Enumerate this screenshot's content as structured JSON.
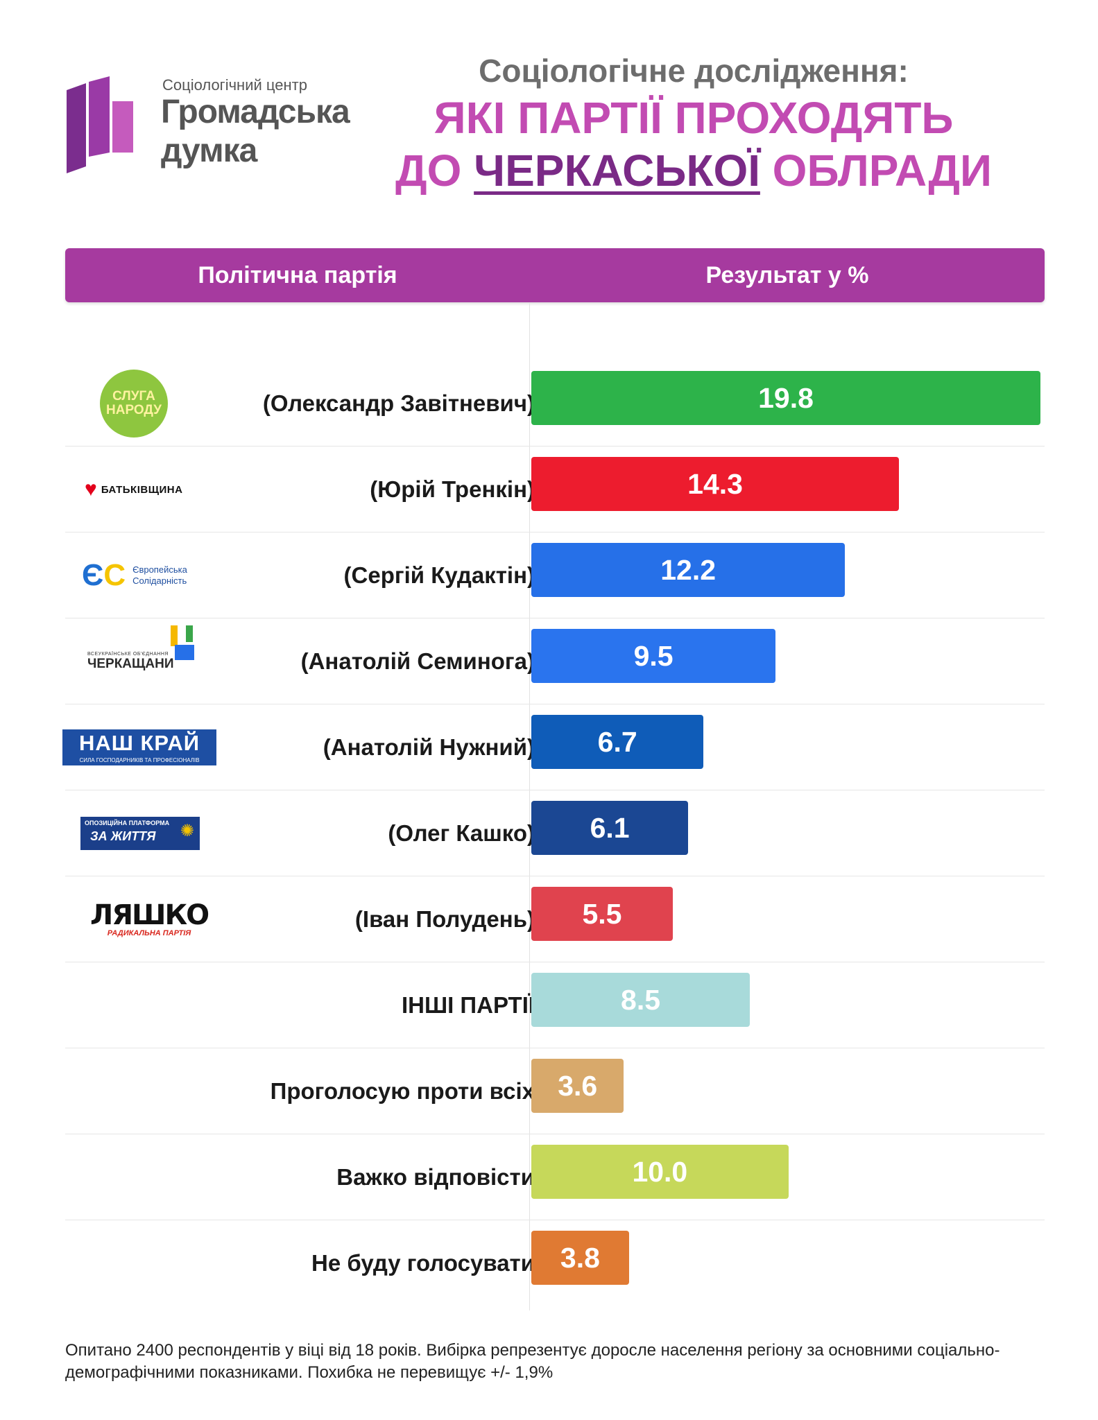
{
  "logo": {
    "subtitle": "Соціологічний центр",
    "name_line1": "Громадська",
    "name_line2": "думка"
  },
  "title": {
    "pre": "Соціологічне дослідження:",
    "line1": "ЯКІ ПАРТІЇ ПРОХОДЯТЬ",
    "line2_prefix": "ДО ",
    "line2_highlight": "ЧЕРКАСЬКОЇ",
    "line2_suffix": " ОБЛРАДИ"
  },
  "table_header": {
    "party": "Політична партія",
    "result": "Результат у %"
  },
  "party_logos": {
    "sluha": [
      "СЛУГА",
      "НАРОДУ"
    ],
    "batkivshchyna": "БАТЬКІВЩИНА",
    "es": [
      "Європейська",
      "Солідарність"
    ],
    "cherkashchany": [
      "ВСЕУКРАЇНСЬКЕ ОБ'ЄДНАННЯ",
      "ЧЕРКАЩАНИ"
    ],
    "nash_krai": [
      "НАШ КРАЙ",
      "СИЛА ГОСПОДАРНИКІВ ТА ПРОФЕСІОНАЛІВ"
    ],
    "opzzh": [
      "ОПОЗИЦІЙНА ПЛАТФОРМА",
      "ЗА ЖИТТЯ"
    ],
    "lyashko": [
      "ЛЯШКО",
      "РАДИКАЛЬНА ПАРТІЯ"
    ]
  },
  "chart_data": {
    "type": "bar",
    "orientation": "horizontal",
    "title": "ЯКІ ПАРТІЇ ПРОХОДЯТЬ ДО ЧЕРКАСЬКОЇ ОБЛРАДИ",
    "xlabel": "Результат у %",
    "ylabel": "Політична партія",
    "xlim": [
      0,
      19.8
    ],
    "categories": [
      "(Олександр Завітневич)",
      "(Юрій Тренкін)",
      "(Сергій Кудактін)",
      "(Анатолій Семинога)",
      "(Анатолій Нужний)",
      "(Олег Кашко)",
      "(Іван Полудень)",
      "ІНШІ ПАРТІЇ",
      "Проголосую проти всіх",
      "Важко відповісти",
      "Не буду голосувати"
    ],
    "values": [
      19.8,
      14.3,
      12.2,
      9.5,
      6.7,
      6.1,
      5.5,
      8.5,
      3.6,
      10.0,
      3.8
    ],
    "value_labels": [
      "19.8",
      "14.3",
      "12.2",
      "9.5",
      "6.7",
      "6.1",
      "5.5",
      "8.5",
      "3.6",
      "10.0",
      "3.8"
    ],
    "colors": [
      "#2db34a",
      "#ed1c2e",
      "#2670e8",
      "#2a74ee",
      "#0f5cb8",
      "#1b4793",
      "#e0434e",
      "#a8dada",
      "#d8a96b",
      "#c6d85a",
      "#e07a33"
    ],
    "party_logo_keys": [
      "sluha",
      "batkivshchyna",
      "es",
      "cherkashchany",
      "nash_krai",
      "opzzh",
      "lyashko",
      null,
      null,
      null,
      null
    ],
    "grid": false,
    "legend": "none"
  },
  "footnote": "Опитано 2400 респондентів у віці від 18 років. Вибірка репрезентує доросле населення регіону за основними соціально-демографічними показниками. Похибка не перевищує +/- 1,9%"
}
